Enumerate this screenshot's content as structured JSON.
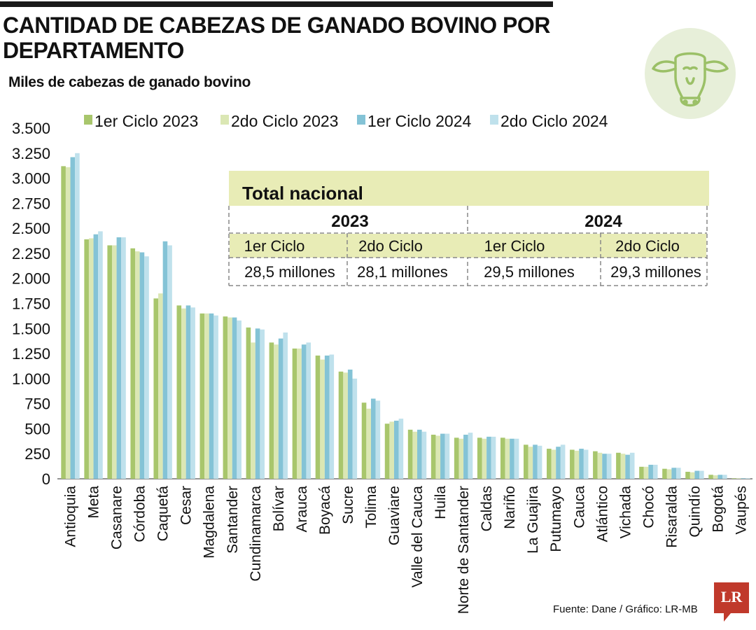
{
  "title": "CANTIDAD DE CABEZAS DE GANADO BOVINO POR DEPARTAMENTO",
  "source": "Fuente: Dane / Gráfico: LR-MB",
  "brand_logo": "LR",
  "icons": {
    "logo": "cow-head-icon",
    "brand": "lr-logo-icon"
  },
  "chart_data": {
    "type": "bar",
    "title": "CANTIDAD DE CABEZAS DE GANADO BOVINO POR DEPARTAMENTO",
    "ylabel": "Miles de cabezas de ganado bovino",
    "xlabel": "",
    "ylim": [
      0,
      3500
    ],
    "yticks": [
      0,
      250,
      500,
      750,
      1000,
      1250,
      1500,
      1750,
      2000,
      2250,
      2500,
      2750,
      3000,
      3250,
      3500
    ],
    "ytick_labels": [
      "0",
      "250",
      "500",
      "750",
      "1.000",
      "1.250",
      "1.500",
      "1.750",
      "2.000",
      "2.250",
      "2.500",
      "2.750",
      "3.000",
      "3.250",
      "3.500"
    ],
    "legend_position": "top",
    "grid": false,
    "categories": [
      "Antioquia",
      "Meta",
      "Casanare",
      "Córdoba",
      "Caquetá",
      "Cesar",
      "Magdalena",
      "Santander",
      "Cundinamarca",
      "Bolívar",
      "Arauca",
      "Boyacá",
      "Sucre",
      "Tolima",
      "Guaviare",
      "Valle del Cauca",
      "Huila",
      "Norte de Santander",
      "Caldas",
      "Nariño",
      "La Guajira",
      "Putumayo",
      "Cauca",
      "Atlántico",
      "Vichada",
      "Chocó",
      "Risaralda",
      "Quindío",
      "Bogotá",
      "Vaupés"
    ],
    "series": [
      {
        "name": "1er Ciclo 2023",
        "color": "#a8c66c",
        "values": [
          3120,
          2390,
          2330,
          2300,
          1800,
          1730,
          1650,
          1620,
          1510,
          1360,
          1300,
          1230,
          1070,
          760,
          550,
          490,
          440,
          410,
          410,
          410,
          340,
          300,
          290,
          275,
          260,
          120,
          100,
          70,
          40,
          5
        ]
      },
      {
        "name": "2do Ciclo 2023",
        "color": "#dbe7b4",
        "values": [
          3110,
          2400,
          2330,
          2270,
          1850,
          1700,
          1650,
          1610,
          1360,
          1340,
          1300,
          1190,
          1060,
          700,
          570,
          470,
          430,
          400,
          400,
          400,
          320,
          290,
          280,
          260,
          250,
          120,
          95,
          65,
          35,
          5
        ]
      },
      {
        "name": "1er Ciclo 2024",
        "color": "#84c3d6",
        "values": [
          3210,
          2440,
          2410,
          2260,
          2370,
          1730,
          1650,
          1610,
          1500,
          1400,
          1340,
          1230,
          1090,
          800,
          580,
          490,
          450,
          440,
          420,
          400,
          340,
          320,
          300,
          250,
          240,
          140,
          110,
          80,
          40,
          5
        ]
      },
      {
        "name": "2do Ciclo 2024",
        "color": "#bfe1ec",
        "values": [
          3250,
          2470,
          2410,
          2220,
          2330,
          1710,
          1630,
          1580,
          1490,
          1460,
          1360,
          1240,
          1000,
          780,
          600,
          470,
          450,
          460,
          420,
          400,
          330,
          340,
          290,
          250,
          260,
          140,
          110,
          80,
          40,
          5
        ]
      }
    ]
  },
  "summary_table": {
    "title": "Total nacional",
    "years": [
      "2023",
      "2024"
    ],
    "cycles": [
      "1er Ciclo",
      "2do Ciclo",
      "1er Ciclo",
      "2do Ciclo"
    ],
    "values": [
      "28,5 millones",
      "28,1 millones",
      "29,5 millones",
      "29,3 millones"
    ],
    "highlight_color": "#e8ecb6"
  }
}
